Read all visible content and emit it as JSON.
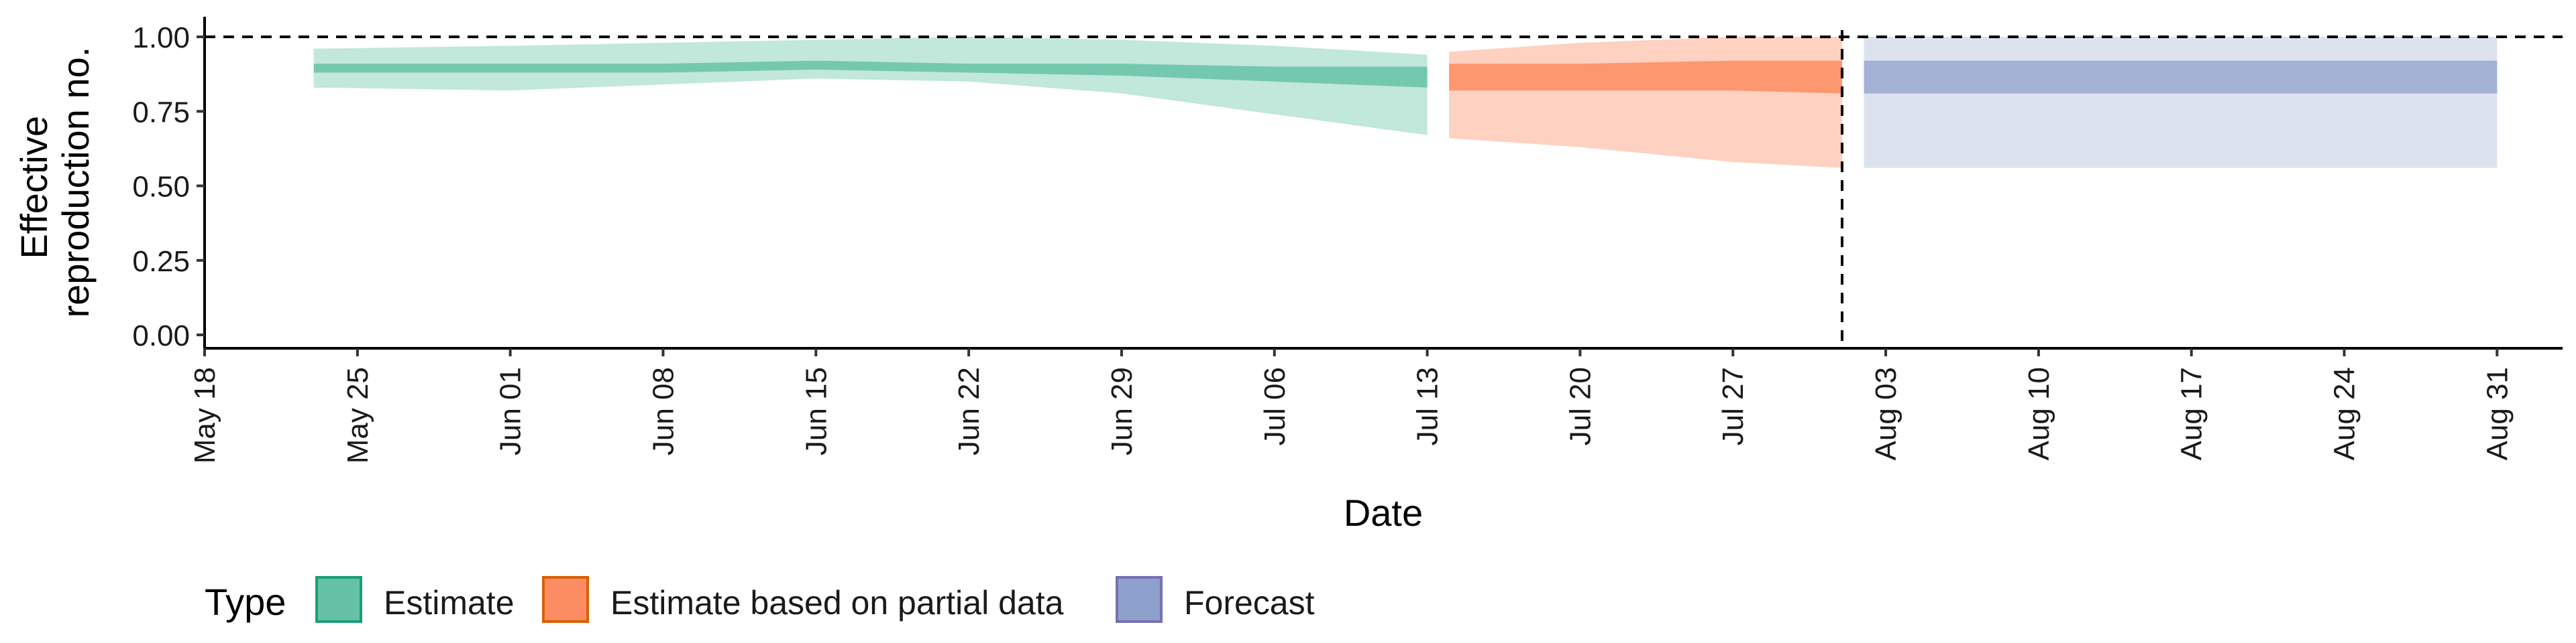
{
  "chart_data": {
    "type": "area",
    "xlabel": "Date",
    "ylabel_lines": [
      "Effective",
      "reproduction no."
    ],
    "ylim": [
      0,
      1
    ],
    "y_ticks": [
      "0.00",
      "0.25",
      "0.50",
      "0.75",
      "1.00"
    ],
    "y_tick_values": [
      0,
      0.25,
      0.5,
      0.75,
      1.0
    ],
    "x_start": "2020-05-18",
    "x_end": "2020-09-03",
    "x_ticks": [
      {
        "date": "2020-05-18",
        "label": "May 18"
      },
      {
        "date": "2020-05-25",
        "label": "May 25"
      },
      {
        "date": "2020-06-01",
        "label": "Jun 01"
      },
      {
        "date": "2020-06-08",
        "label": "Jun 08"
      },
      {
        "date": "2020-06-15",
        "label": "Jun 15"
      },
      {
        "date": "2020-06-22",
        "label": "Jun 22"
      },
      {
        "date": "2020-06-29",
        "label": "Jun 29"
      },
      {
        "date": "2020-07-06",
        "label": "Jul 06"
      },
      {
        "date": "2020-07-13",
        "label": "Jul 13"
      },
      {
        "date": "2020-07-20",
        "label": "Jul 20"
      },
      {
        "date": "2020-07-27",
        "label": "Jul 27"
      },
      {
        "date": "2020-08-03",
        "label": "Aug 03"
      },
      {
        "date": "2020-08-10",
        "label": "Aug 10"
      },
      {
        "date": "2020-08-17",
        "label": "Aug 17"
      },
      {
        "date": "2020-08-24",
        "label": "Aug 24"
      },
      {
        "date": "2020-08-31",
        "label": "Aug 31"
      }
    ],
    "reference_line_y": 1.0,
    "vertical_line_date": "2020-08-01",
    "grid": false,
    "legend_title": "Type",
    "legend_position": "bottom-left",
    "series": [
      {
        "name": "Estimate",
        "color": "#66c2a5",
        "points": [
          {
            "date": "2020-05-23",
            "lo90": 0.83,
            "lo50": 0.88,
            "hi50": 0.91,
            "hi90": 0.96
          },
          {
            "date": "2020-06-01",
            "lo90": 0.82,
            "lo50": 0.88,
            "hi50": 0.91,
            "hi90": 0.97
          },
          {
            "date": "2020-06-08",
            "lo90": 0.84,
            "lo50": 0.88,
            "hi50": 0.91,
            "hi90": 0.98
          },
          {
            "date": "2020-06-15",
            "lo90": 0.86,
            "lo50": 0.89,
            "hi50": 0.92,
            "hi90": 0.99
          },
          {
            "date": "2020-06-22",
            "lo90": 0.85,
            "lo50": 0.88,
            "hi50": 0.91,
            "hi90": 1.0
          },
          {
            "date": "2020-06-29",
            "lo90": 0.81,
            "lo50": 0.87,
            "hi50": 0.91,
            "hi90": 0.99
          },
          {
            "date": "2020-07-06",
            "lo90": 0.74,
            "lo50": 0.85,
            "hi50": 0.9,
            "hi90": 0.97
          },
          {
            "date": "2020-07-13",
            "lo90": 0.67,
            "lo50": 0.83,
            "hi50": 0.9,
            "hi90": 0.94
          }
        ]
      },
      {
        "name": "Estimate based on partial data",
        "color": "#fc8d62",
        "points": [
          {
            "date": "2020-07-14",
            "lo90": 0.66,
            "lo50": 0.82,
            "hi50": 0.91,
            "hi90": 0.95
          },
          {
            "date": "2020-07-20",
            "lo90": 0.63,
            "lo50": 0.82,
            "hi50": 0.91,
            "hi90": 0.98
          },
          {
            "date": "2020-07-27",
            "lo90": 0.58,
            "lo50": 0.82,
            "hi50": 0.92,
            "hi90": 1.0
          },
          {
            "date": "2020-08-01",
            "lo90": 0.56,
            "lo50": 0.81,
            "hi50": 0.92,
            "hi90": 1.0
          }
        ]
      },
      {
        "name": "Forecast",
        "color": "#8da0cb",
        "points": [
          {
            "date": "2020-08-02",
            "lo90": 0.56,
            "lo50": 0.81,
            "hi50": 0.92,
            "hi90": 1.0
          },
          {
            "date": "2020-08-31",
            "lo90": 0.56,
            "lo50": 0.81,
            "hi50": 0.92,
            "hi90": 1.0
          }
        ]
      }
    ]
  },
  "legend": {
    "title": "Type",
    "items": [
      {
        "label": "Estimate",
        "fill": "#66c2a5",
        "border": "#1b9e77"
      },
      {
        "label": "Estimate based on partial data",
        "fill": "#fc8d62",
        "border": "#d95f02"
      },
      {
        "label": "Forecast",
        "fill": "#8da0cb",
        "border": "#7570b3"
      }
    ]
  }
}
